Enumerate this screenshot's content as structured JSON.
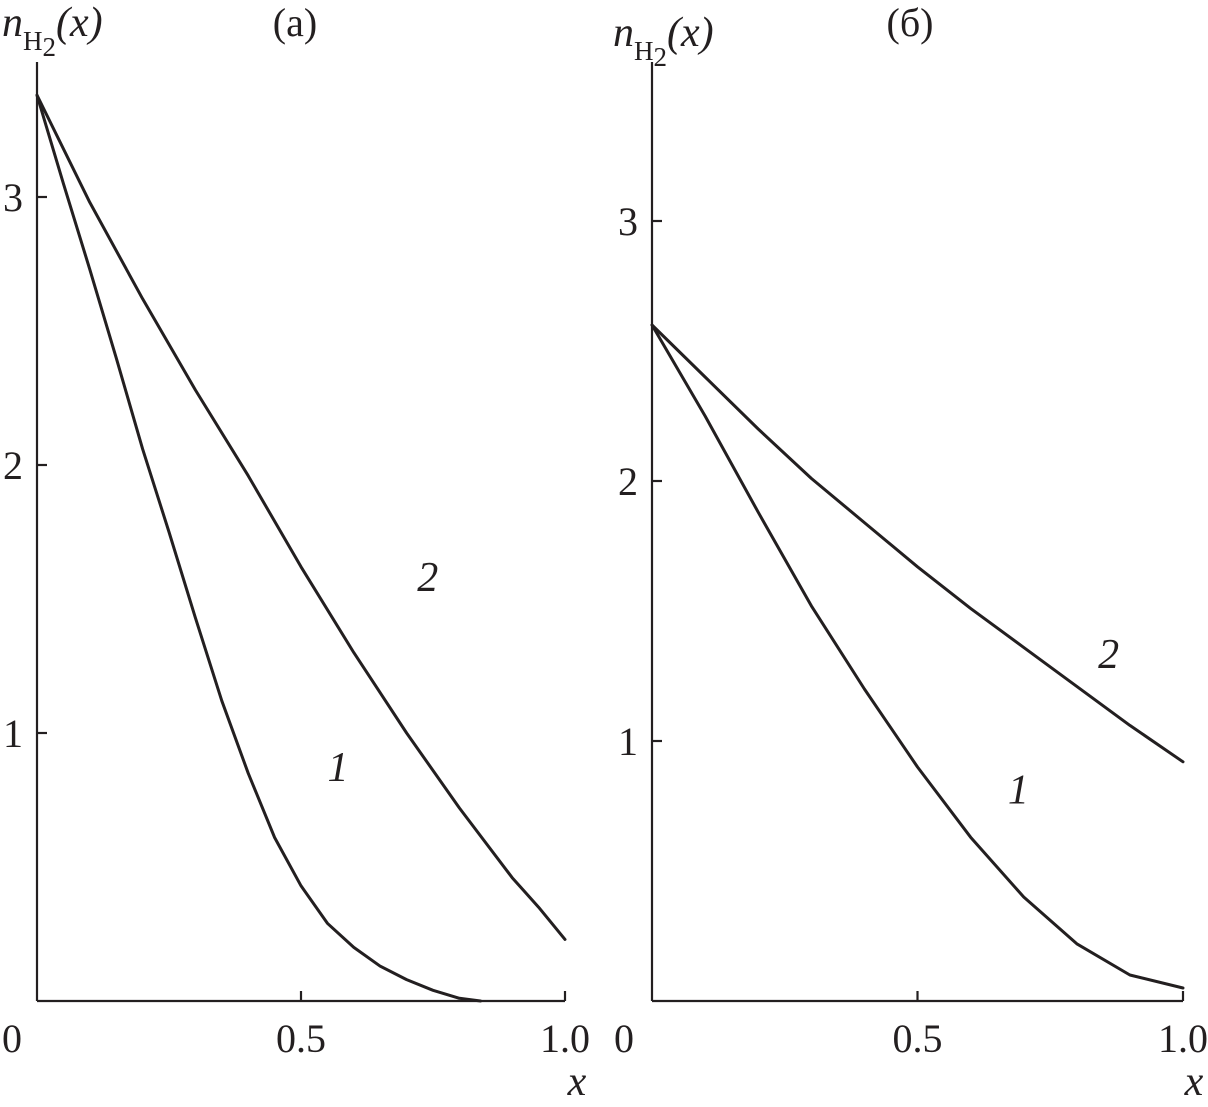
{
  "chart_data": [
    {
      "type": "line",
      "panel": "(a)",
      "ylabel": {
        "main": "n",
        "sub_base": "H",
        "sub_index": "2",
        "arg": "(x)"
      },
      "xlabel": "x",
      "xlim": [
        0,
        1.0
      ],
      "ylim": [
        0,
        3.45
      ],
      "xticks": [
        0,
        0.5,
        1.0
      ],
      "xtick_labels": [
        "0",
        "0.5",
        "1.0"
      ],
      "yticks": [
        1,
        2,
        3
      ],
      "ytick_labels": [
        "1",
        "2",
        "3"
      ],
      "grid": false,
      "series": [
        {
          "name": "1",
          "x": [
            0,
            0.05,
            0.1,
            0.15,
            0.2,
            0.25,
            0.3,
            0.35,
            0.4,
            0.45,
            0.5,
            0.55,
            0.6,
            0.65,
            0.7,
            0.75,
            0.8,
            0.84
          ],
          "y": [
            3.38,
            3.05,
            2.73,
            2.4,
            2.06,
            1.75,
            1.43,
            1.12,
            0.85,
            0.61,
            0.43,
            0.29,
            0.2,
            0.13,
            0.08,
            0.04,
            0.01,
            0.0
          ],
          "label_at": [
            0.57,
            0.82
          ]
        },
        {
          "name": "2",
          "x": [
            0,
            0.1,
            0.2,
            0.3,
            0.4,
            0.5,
            0.6,
            0.7,
            0.8,
            0.9,
            0.95,
            1.0
          ],
          "y": [
            3.38,
            2.98,
            2.62,
            2.28,
            1.96,
            1.62,
            1.3,
            1.0,
            0.72,
            0.46,
            0.35,
            0.23
          ],
          "label_at": [
            0.74,
            1.53
          ]
        }
      ]
    },
    {
      "type": "line",
      "panel": "(б)",
      "ylabel": {
        "main": "n",
        "sub_base": "H",
        "sub_index": "2",
        "arg": "(x)"
      },
      "xlabel": "x",
      "xlim": [
        0,
        1.0
      ],
      "ylim": [
        0,
        3.45
      ],
      "xticks": [
        0,
        0.5,
        1.0
      ],
      "xtick_labels": [
        "0",
        "0.5",
        "1.0"
      ],
      "yticks": [
        1,
        2,
        3
      ],
      "ytick_labels": [
        "1",
        "2",
        "3"
      ],
      "grid": false,
      "series": [
        {
          "name": "1",
          "x": [
            0,
            0.1,
            0.2,
            0.3,
            0.4,
            0.5,
            0.6,
            0.7,
            0.8,
            0.9,
            1.0
          ],
          "y": [
            2.6,
            2.25,
            1.88,
            1.52,
            1.2,
            0.9,
            0.63,
            0.4,
            0.22,
            0.1,
            0.05
          ],
          "label_at": [
            0.69,
            0.76
          ]
        },
        {
          "name": "2",
          "x": [
            0,
            0.1,
            0.2,
            0.3,
            0.4,
            0.5,
            0.6,
            0.7,
            0.8,
            0.9,
            1.0
          ],
          "y": [
            2.6,
            2.4,
            2.2,
            2.01,
            1.84,
            1.67,
            1.51,
            1.36,
            1.21,
            1.06,
            0.92
          ],
          "label_at": [
            0.86,
            1.28
          ]
        }
      ]
    }
  ]
}
